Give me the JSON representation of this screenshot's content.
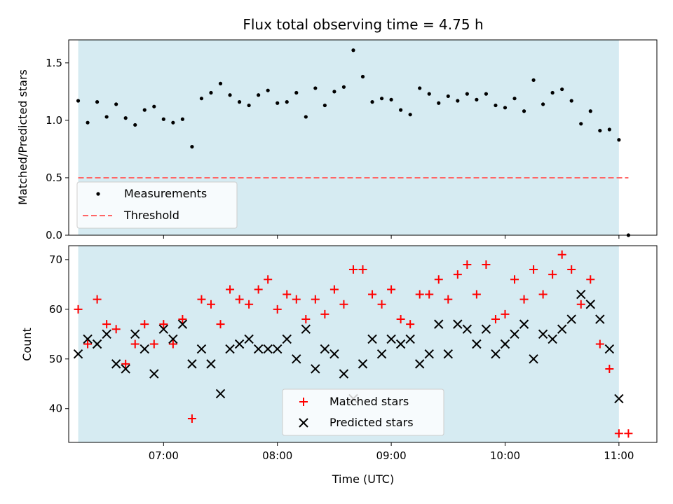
{
  "colors": {
    "shade": "#add8e6",
    "measurement": "#000000",
    "threshold": "#ff6666",
    "matched": "#ff0000",
    "predicted": "#000000"
  },
  "chart_data": [
    {
      "type": "scatter",
      "title": "Flux total observing time = 4.75 h",
      "ylabel": "Matched/Predicted stars",
      "xlim": [
        "06:10",
        "11:20"
      ],
      "ylim": [
        0,
        1.7
      ],
      "yticks": [
        "0.0",
        "0.5",
        "1.0",
        "1.5"
      ],
      "shaded_interval": [
        "06:15",
        "11:00"
      ],
      "threshold": 0.5,
      "legend_placement": "lower-left",
      "legend": [
        "Measurements",
        "Threshold"
      ],
      "series": [
        {
          "name": "Measurements",
          "points": [
            [
              "06:15",
              1.17
            ],
            [
              "06:20",
              0.98
            ],
            [
              "06:25",
              1.16
            ],
            [
              "06:30",
              1.03
            ],
            [
              "06:35",
              1.14
            ],
            [
              "06:40",
              1.02
            ],
            [
              "06:45",
              0.96
            ],
            [
              "06:50",
              1.09
            ],
            [
              "06:55",
              1.12
            ],
            [
              "07:00",
              1.01
            ],
            [
              "07:05",
              0.98
            ],
            [
              "07:10",
              1.01
            ],
            [
              "07:15",
              0.77
            ],
            [
              "07:20",
              1.19
            ],
            [
              "07:25",
              1.24
            ],
            [
              "07:30",
              1.32
            ],
            [
              "07:35",
              1.22
            ],
            [
              "07:40",
              1.16
            ],
            [
              "07:45",
              1.13
            ],
            [
              "07:50",
              1.22
            ],
            [
              "07:55",
              1.26
            ],
            [
              "08:00",
              1.15
            ],
            [
              "08:05",
              1.16
            ],
            [
              "08:10",
              1.24
            ],
            [
              "08:15",
              1.03
            ],
            [
              "08:20",
              1.28
            ],
            [
              "08:25",
              1.13
            ],
            [
              "08:30",
              1.25
            ],
            [
              "08:35",
              1.29
            ],
            [
              "08:40",
              1.61
            ],
            [
              "08:45",
              1.38
            ],
            [
              "08:50",
              1.16
            ],
            [
              "08:55",
              1.19
            ],
            [
              "09:00",
              1.18
            ],
            [
              "09:05",
              1.09
            ],
            [
              "09:10",
              1.05
            ],
            [
              "09:15",
              1.28
            ],
            [
              "09:20",
              1.23
            ],
            [
              "09:25",
              1.15
            ],
            [
              "09:30",
              1.21
            ],
            [
              "09:35",
              1.17
            ],
            [
              "09:40",
              1.23
            ],
            [
              "09:45",
              1.18
            ],
            [
              "09:50",
              1.23
            ],
            [
              "09:55",
              1.13
            ],
            [
              "10:00",
              1.11
            ],
            [
              "10:05",
              1.19
            ],
            [
              "10:10",
              1.08
            ],
            [
              "10:15",
              1.35
            ],
            [
              "10:20",
              1.14
            ],
            [
              "10:25",
              1.24
            ],
            [
              "10:30",
              1.27
            ],
            [
              "10:35",
              1.17
            ],
            [
              "10:40",
              0.97
            ],
            [
              "10:45",
              1.08
            ],
            [
              "10:50",
              0.91
            ],
            [
              "10:55",
              0.92
            ],
            [
              "11:00",
              0.83
            ],
            [
              "11:05",
              0.0
            ]
          ]
        },
        {
          "name": "Threshold",
          "value": 0.5,
          "x": [
            "06:15",
            "11:05"
          ]
        }
      ]
    },
    {
      "type": "scatter",
      "xlabel": "Time (UTC)",
      "ylabel": "Count",
      "xticks": [
        "07:00",
        "08:00",
        "09:00",
        "10:00",
        "11:00"
      ],
      "xlim": [
        "06:10",
        "11:20"
      ],
      "ylim": [
        33.2,
        72.8
      ],
      "yticks": [
        "40",
        "50",
        "60",
        "70"
      ],
      "shaded_interval": [
        "06:15",
        "11:00"
      ],
      "legend_placement": "lower-center",
      "legend": [
        "Matched stars",
        "Predicted stars"
      ],
      "series": [
        {
          "name": "Matched stars",
          "points": [
            [
              "06:15",
              60
            ],
            [
              "06:20",
              53
            ],
            [
              "06:25",
              62
            ],
            [
              "06:30",
              57
            ],
            [
              "06:35",
              56
            ],
            [
              "06:40",
              49
            ],
            [
              "06:45",
              53
            ],
            [
              "06:50",
              57
            ],
            [
              "06:55",
              53
            ],
            [
              "07:00",
              57
            ],
            [
              "07:05",
              53
            ],
            [
              "07:10",
              58
            ],
            [
              "07:15",
              38
            ],
            [
              "07:20",
              62
            ],
            [
              "07:25",
              61
            ],
            [
              "07:30",
              57
            ],
            [
              "07:35",
              64
            ],
            [
              "07:40",
              62
            ],
            [
              "07:45",
              61
            ],
            [
              "07:50",
              64
            ],
            [
              "07:55",
              66
            ],
            [
              "08:00",
              60
            ],
            [
              "08:05",
              63
            ],
            [
              "08:10",
              62
            ],
            [
              "08:15",
              58
            ],
            [
              "08:20",
              62
            ],
            [
              "08:25",
              59
            ],
            [
              "08:30",
              64
            ],
            [
              "08:35",
              61
            ],
            [
              "08:40",
              68
            ],
            [
              "08:45",
              68
            ],
            [
              "08:50",
              63
            ],
            [
              "08:55",
              61
            ],
            [
              "09:00",
              64
            ],
            [
              "09:05",
              58
            ],
            [
              "09:10",
              57
            ],
            [
              "09:15",
              63
            ],
            [
              "09:20",
              63
            ],
            [
              "09:25",
              66
            ],
            [
              "09:30",
              62
            ],
            [
              "09:35",
              67
            ],
            [
              "09:40",
              69
            ],
            [
              "09:45",
              63
            ],
            [
              "09:50",
              69
            ],
            [
              "09:55",
              58
            ],
            [
              "10:00",
              59
            ],
            [
              "10:05",
              66
            ],
            [
              "10:10",
              62
            ],
            [
              "10:15",
              68
            ],
            [
              "10:20",
              63
            ],
            [
              "10:25",
              67
            ],
            [
              "10:30",
              71
            ],
            [
              "10:35",
              68
            ],
            [
              "10:40",
              61
            ],
            [
              "10:45",
              66
            ],
            [
              "10:50",
              53
            ],
            [
              "10:55",
              48
            ],
            [
              "11:00",
              35
            ],
            [
              "11:05",
              35
            ]
          ]
        },
        {
          "name": "Predicted stars",
          "points": [
            [
              "06:15",
              51
            ],
            [
              "06:20",
              54
            ],
            [
              "06:25",
              53
            ],
            [
              "06:30",
              55
            ],
            [
              "06:35",
              49
            ],
            [
              "06:40",
              48
            ],
            [
              "06:45",
              55
            ],
            [
              "06:50",
              52
            ],
            [
              "06:55",
              47
            ],
            [
              "07:00",
              56
            ],
            [
              "07:05",
              54
            ],
            [
              "07:10",
              57
            ],
            [
              "07:15",
              49
            ],
            [
              "07:20",
              52
            ],
            [
              "07:25",
              49
            ],
            [
              "07:30",
              43
            ],
            [
              "07:35",
              52
            ],
            [
              "07:40",
              53
            ],
            [
              "07:45",
              54
            ],
            [
              "07:50",
              52
            ],
            [
              "07:55",
              52
            ],
            [
              "08:00",
              52
            ],
            [
              "08:05",
              54
            ],
            [
              "08:10",
              50
            ],
            [
              "08:15",
              56
            ],
            [
              "08:20",
              48
            ],
            [
              "08:25",
              52
            ],
            [
              "08:30",
              51
            ],
            [
              "08:35",
              47
            ],
            [
              "08:40",
              42
            ],
            [
              "08:45",
              49
            ],
            [
              "08:50",
              54
            ],
            [
              "08:55",
              51
            ],
            [
              "09:00",
              54
            ],
            [
              "09:05",
              53
            ],
            [
              "09:10",
              54
            ],
            [
              "09:15",
              49
            ],
            [
              "09:20",
              51
            ],
            [
              "09:25",
              57
            ],
            [
              "09:30",
              51
            ],
            [
              "09:35",
              57
            ],
            [
              "09:40",
              56
            ],
            [
              "09:45",
              53
            ],
            [
              "09:50",
              56
            ],
            [
              "09:55",
              51
            ],
            [
              "10:00",
              53
            ],
            [
              "10:05",
              55
            ],
            [
              "10:10",
              57
            ],
            [
              "10:15",
              50
            ],
            [
              "10:20",
              55
            ],
            [
              "10:25",
              54
            ],
            [
              "10:30",
              56
            ],
            [
              "10:35",
              58
            ],
            [
              "10:40",
              63
            ],
            [
              "10:45",
              61
            ],
            [
              "10:50",
              58
            ],
            [
              "10:55",
              52
            ],
            [
              "11:00",
              42
            ]
          ]
        }
      ]
    }
  ]
}
